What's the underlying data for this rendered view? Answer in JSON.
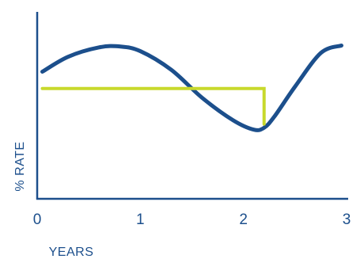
{
  "chart_data": {
    "type": "line",
    "title": "",
    "xlabel": "YEARS",
    "ylabel": "% RATE",
    "x_ticks": [
      0,
      1,
      2,
      3
    ],
    "xlim": [
      0,
      3
    ],
    "ylim": [
      0,
      10
    ],
    "grid": false,
    "series": [
      {
        "color": "#1c4f8c",
        "x": [
          0.05,
          0.3,
          0.6,
          0.8,
          1.0,
          1.3,
          1.6,
          1.9,
          2.1,
          2.2,
          2.3,
          2.5,
          2.75,
          2.95
        ],
        "y": [
          6.8,
          7.6,
          8.1,
          8.15,
          7.9,
          6.9,
          5.4,
          4.2,
          3.7,
          3.8,
          4.4,
          6.0,
          7.8,
          8.2
        ]
      },
      {
        "color": "#c8d92c",
        "x": [
          0.05,
          2.2,
          2.2
        ],
        "y": [
          5.9,
          5.9,
          4.0
        ]
      }
    ]
  }
}
